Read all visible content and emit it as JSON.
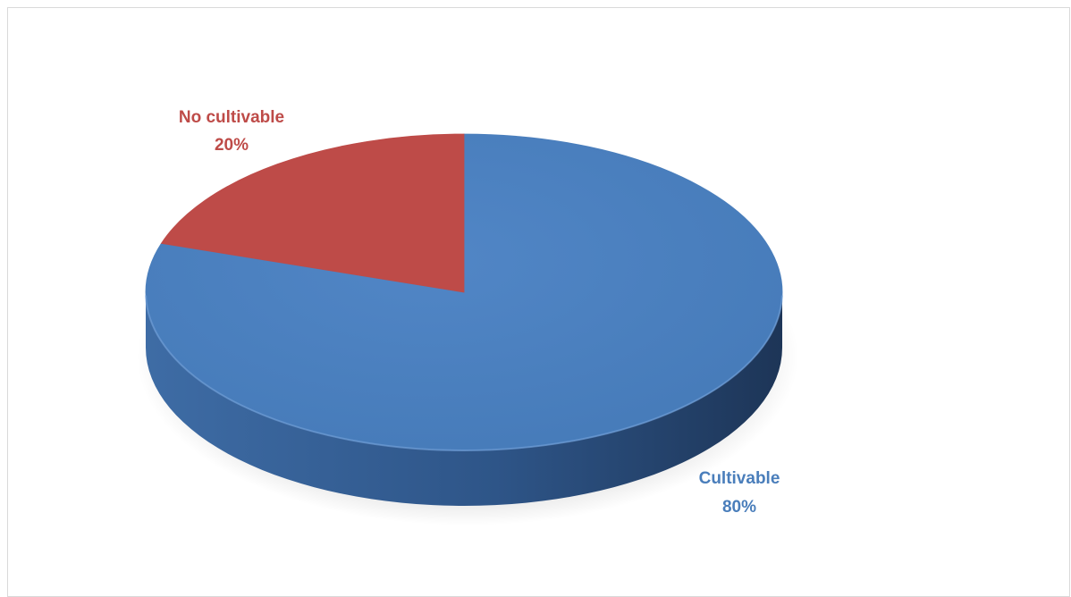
{
  "chart_data": {
    "type": "pie",
    "style": "3d",
    "categories": [
      "Cultivable",
      "No cultivable"
    ],
    "values": [
      80,
      20
    ],
    "value_labels": [
      "80%",
      "20%"
    ],
    "colors": [
      "#4a7ebb",
      "#be4b48"
    ],
    "title": "",
    "legend": "none"
  }
}
